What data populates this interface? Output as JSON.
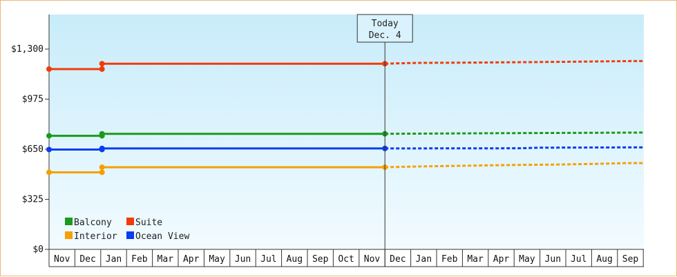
{
  "chart_data": {
    "type": "line",
    "title": "",
    "xlabel": "",
    "ylabel": "",
    "ylim": [
      0,
      1300
    ],
    "y_ticks": [
      {
        "value": 0,
        "label": "$0"
      },
      {
        "value": 325,
        "label": "$325"
      },
      {
        "value": 650,
        "label": "$650"
      },
      {
        "value": 975,
        "label": "$975"
      },
      {
        "value": 1300,
        "label": "$1,300"
      }
    ],
    "x_categories": [
      "Nov",
      "Dec",
      "Jan",
      "Feb",
      "Mar",
      "Apr",
      "May",
      "Jun",
      "Jul",
      "Aug",
      "Sep",
      "Oct",
      "Nov",
      "Dec",
      "Jan",
      "Feb",
      "Mar",
      "Apr",
      "May",
      "Jun",
      "Jul",
      "Aug",
      "Sep"
    ],
    "today_marker": {
      "line1": "Today",
      "line2": "Dec. 4",
      "x": 13.0
    },
    "grid": false,
    "legend_position": "bottom-left",
    "series": [
      {
        "name": "Balcony",
        "color": "#1a9a1a",
        "solid": [
          [
            0.0,
            737
          ],
          [
            2.05,
            737
          ],
          [
            2.05,
            750
          ],
          [
            13.0,
            750
          ]
        ],
        "markers": [
          0.0,
          2.05,
          2.05,
          13.0
        ],
        "projected": [
          [
            13.0,
            750
          ],
          [
            15.4,
            752
          ],
          [
            17.4,
            754
          ],
          [
            20.4,
            756
          ],
          [
            23.0,
            758
          ]
        ]
      },
      {
        "name": "Suite",
        "color": "#f03c0a",
        "solid": [
          [
            0.0,
            1170
          ],
          [
            2.05,
            1170
          ],
          [
            2.05,
            1205
          ],
          [
            13.0,
            1205
          ]
        ],
        "markers": [
          0.0,
          2.05,
          2.05,
          13.0
        ],
        "projected": [
          [
            13.0,
            1205
          ],
          [
            14.2,
            1210
          ],
          [
            16.4,
            1212
          ],
          [
            18.5,
            1215
          ],
          [
            20.4,
            1218
          ],
          [
            22.5,
            1222
          ],
          [
            23.0,
            1222
          ]
        ]
      },
      {
        "name": "Interior",
        "color": "#f5a000",
        "solid": [
          [
            0.0,
            500
          ],
          [
            2.05,
            500
          ],
          [
            2.05,
            533
          ],
          [
            13.0,
            533
          ]
        ],
        "markers": [
          0.0,
          2.05,
          2.05,
          13.0
        ],
        "projected": [
          [
            13.0,
            533
          ],
          [
            14.3,
            538
          ],
          [
            16.2,
            543
          ],
          [
            18.1,
            548
          ],
          [
            19.5,
            550
          ],
          [
            21.2,
            555
          ],
          [
            22.4,
            560
          ],
          [
            23.0,
            560
          ]
        ]
      },
      {
        "name": "Ocean View",
        "color": "#0a3cf0",
        "solid": [
          [
            0.0,
            648
          ],
          [
            2.05,
            648
          ],
          [
            2.05,
            655
          ],
          [
            13.0,
            655
          ]
        ],
        "markers": [
          0.0,
          2.05,
          2.05,
          13.0
        ],
        "projected": [
          [
            13.0,
            655
          ],
          [
            18.2,
            656
          ],
          [
            19.0,
            660
          ],
          [
            23.0,
            662
          ]
        ]
      }
    ],
    "legend": [
      {
        "name": "Balcony",
        "color": "#1a9a1a"
      },
      {
        "name": "Suite",
        "color": "#f03c0a"
      },
      {
        "name": "Interior",
        "color": "#f5a000"
      },
      {
        "name": "Ocean View",
        "color": "#0a3cf0"
      }
    ]
  }
}
